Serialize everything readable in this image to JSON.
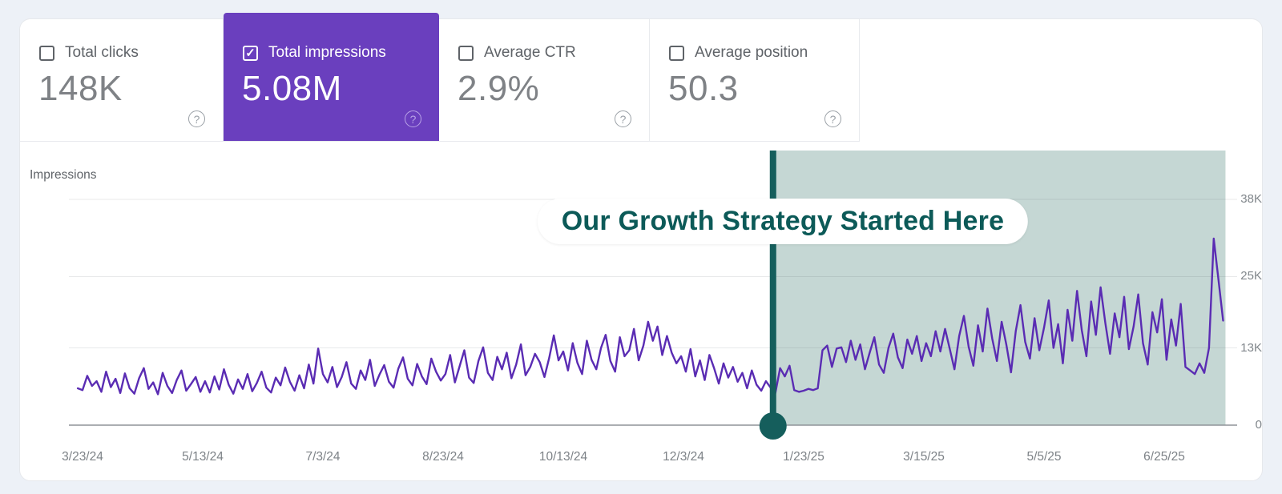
{
  "icons": {
    "checkmark": "✓",
    "help": "?"
  },
  "colors": {
    "page_background": "#EDF1F7",
    "panel_background": "#FFFFFF",
    "selected_card_purple": "#6A3FBE",
    "line_purple": "#5A2CB3",
    "teal_marker": "#155E5C",
    "highlight_region": "#C5D7D4",
    "annotation_text": "#0C5A58",
    "grid_line": "#E6E6E6",
    "axis_line": "#8F9398",
    "label_gray": "#5F6368",
    "value_gray": "#7F8286"
  },
  "cards": [
    {
      "label": "Total clicks",
      "value": "148K",
      "checked": false,
      "selected": false
    },
    {
      "label": "Total impressions",
      "value": "5.08M",
      "checked": true,
      "selected": true
    },
    {
      "label": "Average CTR",
      "value": "2.9%",
      "checked": false,
      "selected": false
    },
    {
      "label": "Average position",
      "value": "50.3",
      "checked": false,
      "selected": false
    }
  ],
  "annotation": {
    "text": "Our Growth Strategy Started Here"
  },
  "chart_data": {
    "type": "line",
    "title": "Impressions",
    "ylabel": "Impressions",
    "xlabel": "",
    "unit": "impressions (values stored in thousands)",
    "grid": true,
    "legend": false,
    "ylim_thousands": [
      0,
      46
    ],
    "x_range": [
      "3/21/24",
      "7/19/25"
    ],
    "y_ticks": [
      {
        "label": "38K",
        "value": 38
      },
      {
        "label": "25K",
        "value": 25
      },
      {
        "label": "13K",
        "value": 13
      },
      {
        "label": "0",
        "value": 0
      }
    ],
    "x_ticks": [
      {
        "label": "3/23/24",
        "day": 0
      },
      {
        "label": "5/13/24",
        "day": 51
      },
      {
        "label": "7/3/24",
        "day": 102
      },
      {
        "label": "8/23/24",
        "day": 153
      },
      {
        "label": "10/13/24",
        "day": 204
      },
      {
        "label": "12/3/24",
        "day": 255
      },
      {
        "label": "1/23/25",
        "day": 306
      },
      {
        "label": "3/15/25",
        "day": 357
      },
      {
        "label": "5/5/25",
        "day": 408
      },
      {
        "label": "6/25/25",
        "day": 459
      }
    ],
    "highlight": {
      "label": "Our Growth Strategy Started Here",
      "marker": "vertical-teal-line-with-dot",
      "start_day": 293,
      "end_day": 485
    },
    "series": [
      {
        "name": "Total impressions",
        "start_day": -2,
        "step_days": 2,
        "values_thousands": [
          6.2,
          5.9,
          8.3,
          6.6,
          7.4,
          5.6,
          9.0,
          6.4,
          7.8,
          5.4,
          8.7,
          6.2,
          5.3,
          7.9,
          9.6,
          6.1,
          7.2,
          5.2,
          8.8,
          6.6,
          5.4,
          7.6,
          9.2,
          5.8,
          6.9,
          8.1,
          5.6,
          7.4,
          5.5,
          8.2,
          6.0,
          9.4,
          6.8,
          5.3,
          7.7,
          6.1,
          8.6,
          5.7,
          7.1,
          9.0,
          6.3,
          5.5,
          8.0,
          6.7,
          9.7,
          7.3,
          5.8,
          8.4,
          6.2,
          10.2,
          7.0,
          12.9,
          8.6,
          7.2,
          9.8,
          6.4,
          8.1,
          10.6,
          7.0,
          6.1,
          9.2,
          7.6,
          11.0,
          6.6,
          8.5,
          10.1,
          7.3,
          6.3,
          9.5,
          11.4,
          7.8,
          6.7,
          10.3,
          8.2,
          6.9,
          11.2,
          9.0,
          7.5,
          8.6,
          11.8,
          7.2,
          9.9,
          12.6,
          8.0,
          7.1,
          10.8,
          13.1,
          8.8,
          7.6,
          11.5,
          9.4,
          12.2,
          7.9,
          10.2,
          13.6,
          8.4,
          9.8,
          12.0,
          10.6,
          8.1,
          11.3,
          15.1,
          10.9,
          12.4,
          9.2,
          13.8,
          10.5,
          8.6,
          14.2,
          11.0,
          9.4,
          13.0,
          15.2,
          10.8,
          9.0,
          14.8,
          11.6,
          12.6,
          16.2,
          10.9,
          13.4,
          17.4,
          14.2,
          16.6,
          11.8,
          15.0,
          12.2,
          10.4,
          11.6,
          9.0,
          12.8,
          8.2,
          10.9,
          7.6,
          11.8,
          9.6,
          7.0,
          10.4,
          8.0,
          9.8,
          7.3,
          8.8,
          6.2,
          9.2,
          6.8,
          5.8,
          7.4,
          6.3,
          5.4,
          9.6,
          8.2,
          10.0,
          5.9,
          5.6,
          5.8,
          6.1,
          5.9,
          6.2,
          12.6,
          13.4,
          9.8,
          12.9,
          13.1,
          10.6,
          14.2,
          11.0,
          13.6,
          9.4,
          12.2,
          14.8,
          10.2,
          8.8,
          13.0,
          15.4,
          11.4,
          9.6,
          14.4,
          12.0,
          15.0,
          10.8,
          13.8,
          11.6,
          15.8,
          12.4,
          16.2,
          12.8,
          9.4,
          15.0,
          18.4,
          13.2,
          10.0,
          16.8,
          12.4,
          19.6,
          14.6,
          10.8,
          17.4,
          13.6,
          8.9,
          15.8,
          20.2,
          14.0,
          11.2,
          18.0,
          12.6,
          16.4,
          21.0,
          13.0,
          17.0,
          10.4,
          19.4,
          14.2,
          22.6,
          16.0,
          11.6,
          20.8,
          15.2,
          23.2,
          17.2,
          12.0,
          18.8,
          14.8,
          21.6,
          12.8,
          16.6,
          22.0,
          13.8,
          10.2,
          19.0,
          15.6,
          21.2,
          11.0,
          17.8,
          13.4,
          20.4,
          9.8,
          9.2,
          8.6,
          10.4,
          8.8,
          13.0,
          31.4,
          24.6,
          17.6
        ]
      }
    ]
  }
}
